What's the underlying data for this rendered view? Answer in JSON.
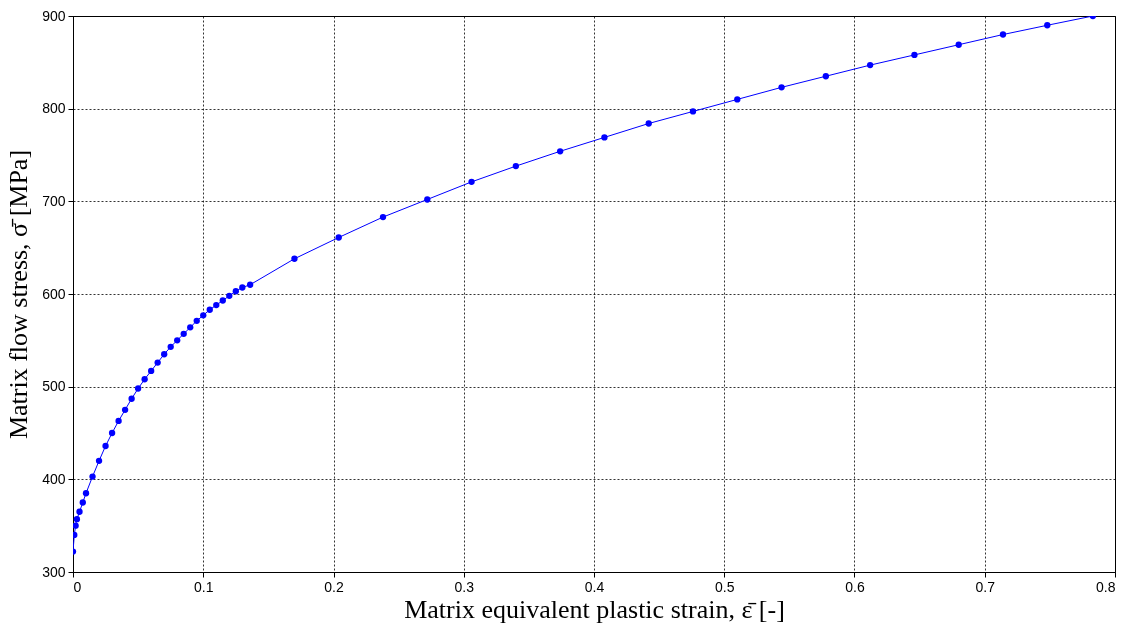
{
  "chart_data": {
    "type": "line",
    "xlabel": "Matrix equivalent plastic strain, ε̄ [-]",
    "ylabel": "Matrix flow stress, σ̄ [MPa]",
    "series": [
      {
        "color": "#0000ff",
        "x": [
          0,
          0.001,
          0.002,
          0.003,
          0.005,
          0.0075,
          0.01,
          0.015,
          0.02,
          0.025,
          0.03,
          0.035,
          0.04,
          0.045,
          0.05,
          0.055,
          0.06,
          0.065,
          0.07,
          0.075,
          0.08,
          0.085,
          0.09,
          0.095,
          0.1,
          0.105,
          0.11,
          0.115,
          0.12,
          0.125,
          0.13,
          0.136,
          0.17,
          0.204,
          0.238,
          0.272,
          0.306,
          0.34,
          0.374,
          0.408,
          0.442,
          0.476,
          0.51,
          0.544,
          0.578,
          0.612,
          0.646,
          0.68,
          0.714,
          0.748,
          0.783
        ],
        "values": [
          322,
          340,
          350,
          357,
          365,
          375,
          385,
          403,
          420,
          436,
          450,
          463,
          475,
          487,
          498,
          508,
          517,
          526,
          535,
          543,
          550,
          557,
          564,
          571,
          577,
          583,
          588,
          593,
          598,
          603,
          607,
          610,
          638,
          661,
          683,
          702,
          721,
          738,
          754,
          769,
          784,
          797,
          810,
          823,
          835,
          847,
          858,
          869,
          880,
          890,
          900
        ]
      }
    ],
    "xlim": [
      0,
      0.8
    ],
    "xticks": [
      0,
      0.1,
      0.2,
      0.3,
      0.4,
      0.5,
      0.6,
      0.7,
      0.8
    ],
    "ylim": [
      300,
      900
    ],
    "yticks": [
      300,
      400,
      500,
      600,
      700,
      800,
      900
    ],
    "grid": true,
    "marker": "circle",
    "line_style": "solid"
  }
}
